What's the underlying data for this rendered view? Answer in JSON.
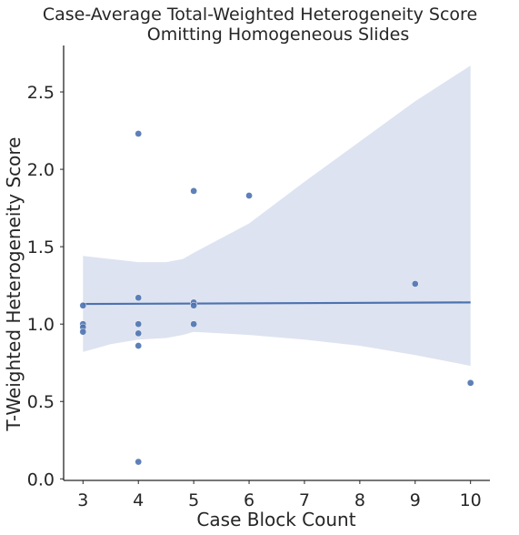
{
  "chart_data": {
    "type": "scatter",
    "title": "Case-Average Total-Weighted Heterogeneity Score",
    "subtitle": "Omitting Homogeneous Slides",
    "xlabel": "Case Block Count",
    "ylabel": "T-Weighted Heterogeneity Score",
    "x_ticks": [
      3,
      4,
      5,
      6,
      7,
      8,
      9,
      10
    ],
    "y_ticks": [
      0.0,
      0.5,
      1.0,
      1.5,
      2.0,
      2.5
    ],
    "y_tick_labels": [
      "0.0",
      "0.5",
      "1.0",
      "1.5",
      "2.0",
      "2.5"
    ],
    "xlim": [
      2.65,
      10.35
    ],
    "ylim": [
      -0.01,
      2.8
    ],
    "grid": false,
    "points": [
      {
        "x": 3,
        "y": 1.12
      },
      {
        "x": 3,
        "y": 1.0
      },
      {
        "x": 3,
        "y": 0.98
      },
      {
        "x": 3,
        "y": 0.95
      },
      {
        "x": 4,
        "y": 2.23
      },
      {
        "x": 4,
        "y": 1.17
      },
      {
        "x": 4,
        "y": 1.0
      },
      {
        "x": 4,
        "y": 0.94
      },
      {
        "x": 4,
        "y": 0.86
      },
      {
        "x": 4,
        "y": 0.11
      },
      {
        "x": 5,
        "y": 1.86
      },
      {
        "x": 5,
        "y": 1.14
      },
      {
        "x": 5,
        "y": 1.12
      },
      {
        "x": 5,
        "y": 1.0
      },
      {
        "x": 6,
        "y": 1.83
      },
      {
        "x": 9,
        "y": 1.26
      },
      {
        "x": 10,
        "y": 0.62
      }
    ],
    "regression": {
      "x": [
        3,
        10
      ],
      "y": [
        1.13,
        1.14
      ]
    },
    "confidence_band": {
      "x": [
        3,
        3.5,
        4,
        4.5,
        4.8,
        5,
        6,
        7,
        8,
        9,
        10
      ],
      "upper": [
        1.44,
        1.42,
        1.4,
        1.4,
        1.42,
        1.46,
        1.65,
        1.92,
        2.18,
        2.44,
        2.67
      ],
      "lower": [
        0.82,
        0.87,
        0.9,
        0.91,
        0.93,
        0.95,
        0.93,
        0.9,
        0.86,
        0.8,
        0.73
      ]
    },
    "colors": {
      "points": "#4c72b0",
      "line": "#4c72b0",
      "band": "#dde3f0",
      "axis": "#262626"
    }
  }
}
